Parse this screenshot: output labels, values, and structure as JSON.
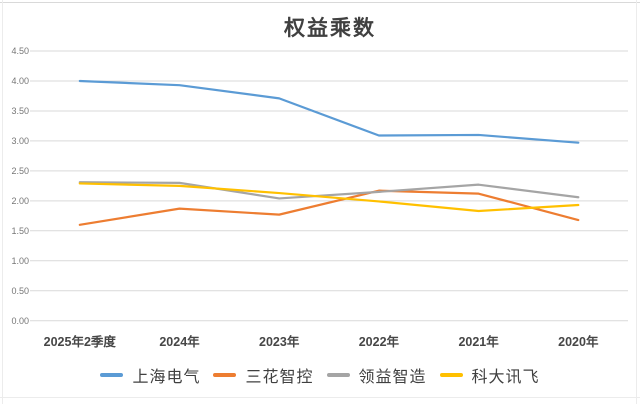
{
  "window": {
    "background": "#FFFFFF",
    "frame_color": "#D9D9D9"
  },
  "chart_data": {
    "type": "line",
    "title": "权益乘数",
    "title_color": "#404040",
    "categories": [
      "2025年2季度",
      "2024年",
      "2023年",
      "2022年",
      "2021年",
      "2020年"
    ],
    "series": [
      {
        "name": "上海电气",
        "color": "#5B9BD5",
        "values": [
          4.0,
          3.93,
          3.71,
          3.09,
          3.1,
          2.97
        ]
      },
      {
        "name": "三花智控",
        "color": "#ED7D31",
        "values": [
          1.6,
          1.87,
          1.77,
          2.17,
          2.12,
          1.68
        ]
      },
      {
        "name": "领益智造",
        "color": "#A5A5A5",
        "values": [
          2.31,
          2.3,
          2.04,
          2.15,
          2.27,
          2.06
        ]
      },
      {
        "name": "科大讯飞",
        "color": "#FFC000",
        "values": [
          2.29,
          2.25,
          2.13,
          1.99,
          1.83,
          1.93
        ]
      }
    ],
    "y_axis": {
      "min": 0,
      "max": 4.5,
      "step": 0.5,
      "tick_labels": [
        "4.50",
        "4.00",
        "3.50",
        "3.00",
        "2.50",
        "2.00",
        "1.50",
        "1.00",
        "0.50",
        "0.00"
      ],
      "tick_color": "#767676"
    },
    "x_axis": {
      "tick_color": "#464646"
    },
    "grid": true,
    "gridline_color": "#D9D9D9",
    "legend_position": "bottom",
    "legend_text_color": "#404040"
  }
}
